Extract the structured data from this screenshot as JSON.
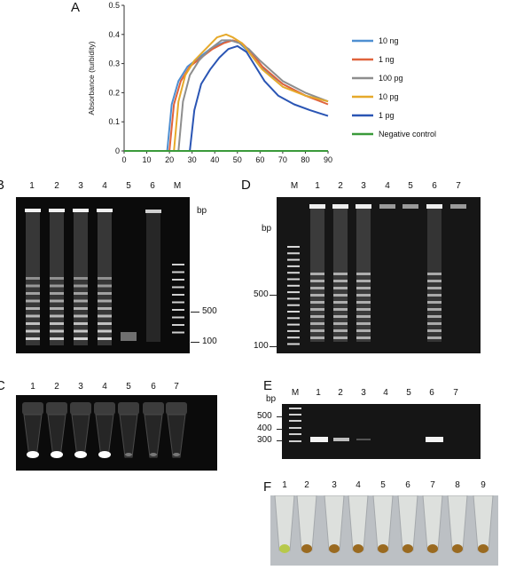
{
  "panels": {
    "a": {
      "label": "A",
      "chart_data": {
        "type": "line",
        "ylabel": "Absorbance (turbidity)",
        "xlabel": "",
        "xlim": [
          0,
          90
        ],
        "ylim": [
          0,
          0.5
        ],
        "xticks": [
          "0",
          "10",
          "20",
          "30",
          "40",
          "50",
          "60",
          "70",
          "80",
          "90"
        ],
        "yticks": [
          "0",
          "0.1",
          "0.2",
          "0.3",
          "0.4",
          "0.5"
        ],
        "grid": false,
        "legend_position": "right",
        "series": [
          {
            "name": "10 ng",
            "color": "#4f8fd1",
            "x": [
              0,
              19,
              21,
              24,
              28,
              33,
              38,
              43,
              47,
              51,
              55,
              60,
              70,
              80,
              90
            ],
            "y": [
              0,
              0,
              0.16,
              0.24,
              0.29,
              0.32,
              0.35,
              0.37,
              0.38,
              0.37,
              0.34,
              0.29,
              0.23,
              0.19,
              0.17
            ]
          },
          {
            "name": "1 ng",
            "color": "#e0633c",
            "x": [
              0,
              20,
              22,
              25,
              29,
              34,
              39,
              44,
              48,
              52,
              56,
              61,
              70,
              80,
              90
            ],
            "y": [
              0,
              0,
              0.16,
              0.24,
              0.29,
              0.32,
              0.35,
              0.37,
              0.38,
              0.37,
              0.34,
              0.29,
              0.23,
              0.19,
              0.16
            ]
          },
          {
            "name": "100 pg",
            "color": "#8e8e8e",
            "x": [
              0,
              24,
              26,
              29,
              33,
              38,
              43,
              47,
              51,
              55,
              60,
              70,
              80,
              90
            ],
            "y": [
              0,
              0,
              0.17,
              0.26,
              0.31,
              0.35,
              0.38,
              0.38,
              0.37,
              0.35,
              0.31,
              0.24,
              0.2,
              0.17
            ]
          },
          {
            "name": "10 pg",
            "color": "#e6a92a",
            "x": [
              0,
              22,
              24,
              27,
              31,
              36,
              41,
              45,
              48,
              52,
              56,
              61,
              70,
              80,
              90
            ],
            "y": [
              0,
              0,
              0.17,
              0.26,
              0.31,
              0.35,
              0.39,
              0.4,
              0.39,
              0.37,
              0.33,
              0.28,
              0.22,
              0.19,
              0.17
            ]
          },
          {
            "name": "1 pg",
            "color": "#2a55b4",
            "x": [
              0,
              29,
              31,
              34,
              38,
              42,
              46,
              50,
              54,
              58,
              62,
              68,
              75,
              82,
              90
            ],
            "y": [
              0,
              0,
              0.14,
              0.23,
              0.28,
              0.32,
              0.35,
              0.36,
              0.34,
              0.29,
              0.24,
              0.19,
              0.16,
              0.14,
              0.12
            ]
          },
          {
            "name": "Negative control",
            "color": "#3a9a3a",
            "x": [
              0,
              90
            ],
            "y": [
              0,
              0
            ]
          }
        ]
      }
    },
    "b": {
      "label": "B",
      "lanes": [
        "1",
        "2",
        "3",
        "4",
        "5",
        "6",
        "M"
      ],
      "unit": "bp",
      "markers": [
        "500",
        "100"
      ]
    },
    "c": {
      "label": "C",
      "lanes": [
        "1",
        "2",
        "3",
        "4",
        "5",
        "6",
        "7"
      ]
    },
    "d": {
      "label": "D",
      "lanes": [
        "M",
        "1",
        "2",
        "3",
        "4",
        "5",
        "6",
        "7"
      ],
      "unit": "bp",
      "markers": [
        "500",
        "100"
      ]
    },
    "e": {
      "label": "E",
      "lanes": [
        "M",
        "1",
        "2",
        "3",
        "4",
        "5",
        "6",
        "7"
      ],
      "unit": "bp",
      "markers": [
        "500",
        "400",
        "300"
      ]
    },
    "f": {
      "label": "F",
      "lanes": [
        "1",
        "2",
        "3",
        "4",
        "5",
        "6",
        "7",
        "8",
        "9"
      ]
    }
  }
}
